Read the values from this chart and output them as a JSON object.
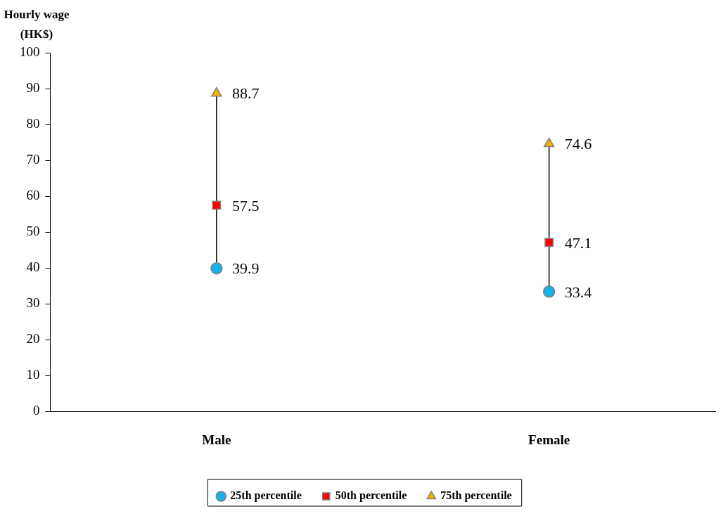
{
  "chart_data": {
    "type": "scatter",
    "ylabel": "Hourly wage\n(HK$)",
    "categories": [
      "Male",
      "Female"
    ],
    "series": [
      {
        "name": "25th percentile",
        "color": "#1ab0e6",
        "marker": "circle",
        "values": [
          39.9,
          33.4
        ]
      },
      {
        "name": "50th percentile",
        "color": "#ff0000",
        "marker": "square",
        "values": [
          57.5,
          47.1
        ]
      },
      {
        "name": "75th percentile",
        "color": "#f5b400",
        "marker": "triangle",
        "values": [
          88.7,
          74.6
        ]
      }
    ],
    "ylim": [
      0,
      100
    ],
    "yticks": [
      0,
      10,
      20,
      30,
      40,
      50,
      60,
      70,
      80,
      90,
      100
    ],
    "grid": false,
    "legend": "bottom",
    "data_labels": true
  }
}
